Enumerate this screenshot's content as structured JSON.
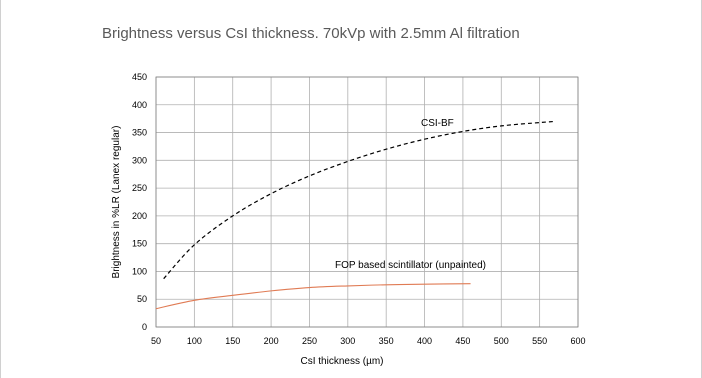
{
  "chart_data": {
    "type": "line",
    "title": "Brightness versus CsI thickness. 70kVp with 2.5mm Al filtration",
    "xlabel": "CsI thickness (µm)",
    "ylabel": "Brightness in %LR (Lanex regular)",
    "xlim": [
      50,
      600
    ],
    "ylim": [
      0,
      450
    ],
    "xticks": [
      50,
      100,
      150,
      200,
      250,
      300,
      350,
      400,
      450,
      500,
      550,
      600
    ],
    "yticks": [
      0,
      50,
      100,
      150,
      200,
      250,
      300,
      350,
      400,
      450
    ],
    "grid": true,
    "series": [
      {
        "name": "CSI-BF",
        "color": "#000000",
        "dash": true,
        "x": [
          60,
          100,
          150,
          200,
          250,
          300,
          350,
          400,
          450,
          500,
          550,
          570
        ],
        "y": [
          87,
          148,
          200,
          240,
          272,
          298,
          320,
          338,
          352,
          362,
          368,
          370
        ]
      },
      {
        "name": "FOP based scintillator (unpainted)",
        "color": "#e07b54",
        "dash": false,
        "x": [
          50,
          100,
          150,
          200,
          250,
          300,
          350,
          400,
          460
        ],
        "y": [
          33,
          48,
          57,
          65,
          71,
          74,
          76,
          77,
          78
        ]
      }
    ]
  }
}
